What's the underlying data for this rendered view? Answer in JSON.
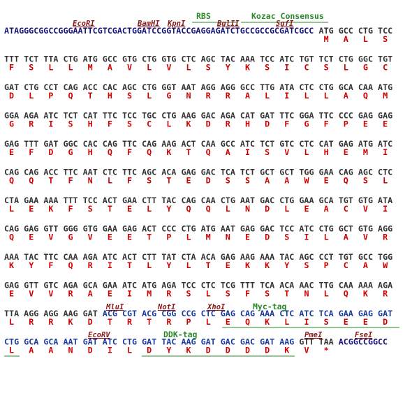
{
  "aa_color": "#d00000",
  "rows": [
    {
      "segments": [
        {
          "color": "#14147a",
          "text": "ATAGGGCGGCCGGGAATTCGTCGACTGGATCCGGTACCGAGGAGATCTGCCGCCGCGATCGCC"
        },
        {
          "color": "#333333",
          "codons": [
            "ATG",
            "GCC",
            "CTG",
            "TCC"
          ],
          "aa": [
            "M",
            "A",
            "L",
            "S"
          ]
        }
      ]
    },
    {
      "segments": [
        {
          "color": "#333333",
          "codons": [
            "TTT",
            "TCT",
            "TTA",
            "CTG",
            "ATG",
            "GCC",
            "GTG",
            "CTG",
            "GTG",
            "CTC",
            "AGC",
            "TAC",
            "AAA",
            "TCC",
            "ATC",
            "TGT",
            "TCT",
            "CTG",
            "GGC",
            "TGT"
          ],
          "aa": [
            "F",
            "S",
            "L",
            "L",
            "M",
            "A",
            "V",
            "L",
            "V",
            "L",
            "S",
            "Y",
            "K",
            "S",
            "I",
            "C",
            "S",
            "L",
            "G",
            "C"
          ]
        }
      ]
    },
    {
      "segments": [
        {
          "color": "#333333",
          "codons": [
            "GAT",
            "CTG",
            "CCT",
            "CAG",
            "ACC",
            "CAC",
            "AGC",
            "CTG",
            "GGT",
            "AAT",
            "AGG",
            "AGG",
            "GCC",
            "TTG",
            "ATA",
            "CTC",
            "CTG",
            "GCA",
            "CAA",
            "ATG"
          ],
          "aa": [
            "D",
            "L",
            "P",
            "Q",
            "T",
            "H",
            "S",
            "L",
            "G",
            "N",
            "R",
            "R",
            "A",
            "L",
            "I",
            "L",
            "L",
            "A",
            "Q",
            "M"
          ]
        }
      ]
    },
    {
      "segments": [
        {
          "color": "#333333",
          "codons": [
            "GGA",
            "AGA",
            "ATC",
            "TCT",
            "CAT",
            "TTC",
            "TCC",
            "TGC",
            "CTG",
            "AAG",
            "GAC",
            "AGA",
            "CAT",
            "GAT",
            "TTC",
            "GGA",
            "TTC",
            "CCC",
            "GAG",
            "GAG"
          ],
          "aa": [
            "G",
            "R",
            "I",
            "S",
            "H",
            "F",
            "S",
            "C",
            "L",
            "K",
            "D",
            "R",
            "H",
            "D",
            "F",
            "G",
            "F",
            "P",
            "E",
            "E"
          ]
        }
      ]
    },
    {
      "segments": [
        {
          "color": "#333333",
          "codons": [
            "GAG",
            "TTT",
            "GAT",
            "GGC",
            "CAC",
            "CAG",
            "TTC",
            "CAG",
            "AAG",
            "ACT",
            "CAA",
            "GCC",
            "ATC",
            "TCT",
            "GTC",
            "CTC",
            "CAT",
            "GAG",
            "ATG",
            "ATC"
          ],
          "aa": [
            "E",
            "F",
            "D",
            "G",
            "H",
            "Q",
            "F",
            "Q",
            "K",
            "T",
            "Q",
            "A",
            "I",
            "S",
            "V",
            "L",
            "H",
            "E",
            "M",
            "I"
          ]
        }
      ]
    },
    {
      "segments": [
        {
          "color": "#333333",
          "codons": [
            "CAG",
            "CAG",
            "ACC",
            "TTC",
            "AAT",
            "CTC",
            "TTC",
            "AGC",
            "ACA",
            "GAG",
            "GAC",
            "TCA",
            "TCT",
            "GCT",
            "GCT",
            "TGG",
            "GAA",
            "CAG",
            "AGC",
            "CTC"
          ],
          "aa": [
            "Q",
            "Q",
            "T",
            "F",
            "N",
            "L",
            "F",
            "S",
            "T",
            "E",
            "D",
            "S",
            "S",
            "A",
            "A",
            "W",
            "E",
            "Q",
            "S",
            "L"
          ]
        }
      ]
    },
    {
      "segments": [
        {
          "color": "#333333",
          "codons": [
            "CTA",
            "GAA",
            "AAA",
            "TTT",
            "TCC",
            "ACT",
            "GAA",
            "CTT",
            "TAC",
            "CAG",
            "CAA",
            "CTG",
            "AAT",
            "GAC",
            "CTG",
            "GAA",
            "GCA",
            "TGT",
            "GTG",
            "ATA"
          ],
          "aa": [
            "L",
            "E",
            "K",
            "F",
            "S",
            "T",
            "E",
            "L",
            "Y",
            "Q",
            "Q",
            "L",
            "N",
            "D",
            "L",
            "E",
            "A",
            "C",
            "V",
            "I"
          ]
        }
      ]
    },
    {
      "segments": [
        {
          "color": "#333333",
          "codons": [
            "CAG",
            "GAG",
            "GTT",
            "GGG",
            "GTG",
            "GAA",
            "GAG",
            "ACT",
            "CCC",
            "CTG",
            "ATG",
            "AAT",
            "GAG",
            "GAC",
            "TCC",
            "ATC",
            "CTG",
            "GCT",
            "GTG",
            "AGG"
          ],
          "aa": [
            "Q",
            "E",
            "V",
            "G",
            "V",
            "E",
            "E",
            "T",
            "P",
            "L",
            "M",
            "N",
            "E",
            "D",
            "S",
            "I",
            "L",
            "A",
            "V",
            "R"
          ]
        }
      ]
    },
    {
      "segments": [
        {
          "color": "#333333",
          "codons": [
            "AAA",
            "TAC",
            "TTC",
            "CAA",
            "AGA",
            "ATC",
            "ACT",
            "CTT",
            "TAT",
            "CTA",
            "ACA",
            "GAG",
            "AAG",
            "AAA",
            "TAC",
            "AGC",
            "CCT",
            "TGT",
            "GCC",
            "TGG"
          ],
          "aa": [
            "K",
            "Y",
            "F",
            "Q",
            "R",
            "I",
            "T",
            "L",
            "Y",
            "L",
            "T",
            "E",
            "K",
            "K",
            "Y",
            "S",
            "P",
            "C",
            "A",
            "W"
          ]
        }
      ]
    },
    {
      "segments": [
        {
          "color": "#333333",
          "codons": [
            "GAG",
            "GTT",
            "GTC",
            "AGA",
            "GCA",
            "GAA",
            "ATC",
            "ATG",
            "AGA",
            "TCC",
            "CTC",
            "TCG",
            "TTT",
            "TCA",
            "ACA",
            "AAC",
            "TTG",
            "CAA",
            "AAA",
            "AGA"
          ],
          "aa": [
            "E",
            "V",
            "V",
            "R",
            "A",
            "E",
            "I",
            "M",
            "R",
            "S",
            "L",
            "S",
            "F",
            "S",
            "T",
            "N",
            "L",
            "Q",
            "K",
            "R"
          ]
        }
      ]
    },
    {
      "segments": [
        {
          "color": "#333333",
          "codons": [
            "TTA",
            "AGG",
            "AGG",
            "AAG",
            "GAT"
          ],
          "aa": [
            "L",
            "R",
            "R",
            "K",
            "D"
          ]
        },
        {
          "color": "#1a3aa0",
          "codons": [
            "ACG",
            "CGT",
            "ACG",
            "CGG",
            "CCG",
            "CTC",
            "GAG",
            "CAG",
            "AAA",
            "CTC",
            "ATC",
            "TCA",
            "GAA",
            "GAG",
            "GAT"
          ],
          "aa": [
            "T",
            "R",
            "T",
            "R",
            "P",
            "L",
            "E",
            "Q",
            "K",
            "L",
            "I",
            "S",
            "E",
            "E",
            "D"
          ]
        }
      ]
    },
    {
      "segments": [
        {
          "color": "#1a3aa0",
          "codons": [
            "CTG",
            "GCA",
            "GCA",
            "AAT",
            "GAT",
            "ATC",
            "CTG",
            "GAT",
            "TAC",
            "AAG",
            "GAT",
            "GAC",
            "GAC",
            "GAT",
            "AAG"
          ],
          "aa": [
            "L",
            "A",
            "A",
            "N",
            "D",
            "I",
            "L",
            "D",
            "Y",
            "K",
            "D",
            "D",
            "D",
            "D",
            "K"
          ]
        },
        {
          "color": "#333333",
          "codons": [
            "GTT",
            "TAA"
          ],
          "aa": [
            "V",
            "*"
          ]
        },
        {
          "color": "#14147a",
          "text": "ACGGCCGGCC"
        }
      ]
    }
  ],
  "annotations": [
    {
      "text": "EcoRI",
      "color": "#8b1a1a"
    },
    {
      "text": "BamHI",
      "color": "#8b1a1a"
    },
    {
      "text": "KpnI",
      "color": "#8b1a1a"
    },
    {
      "text": "BglII",
      "color": "#8b1a1a"
    },
    {
      "text": "SgfI",
      "color": "#8b1a1a"
    },
    {
      "text": "RBS",
      "color": "#2a8a2a"
    },
    {
      "text": "Kozac Consensus",
      "color": "#2a8a2a"
    },
    {
      "text": "MluI",
      "color": "#8b1a1a"
    },
    {
      "text": "NotI",
      "color": "#8b1a1a"
    },
    {
      "text": "XhoI",
      "color": "#8b1a1a"
    },
    {
      "text": "Myc-tag",
      "color": "#2a8a2a"
    },
    {
      "text": "EcoRV",
      "color": "#8b1a1a"
    },
    {
      "text": "DDK-tag",
      "color": "#2a8a2a"
    },
    {
      "text": "PmeI",
      "color": "#8b1a1a"
    },
    {
      "text": "FseI",
      "color": "#8b1a1a"
    }
  ]
}
